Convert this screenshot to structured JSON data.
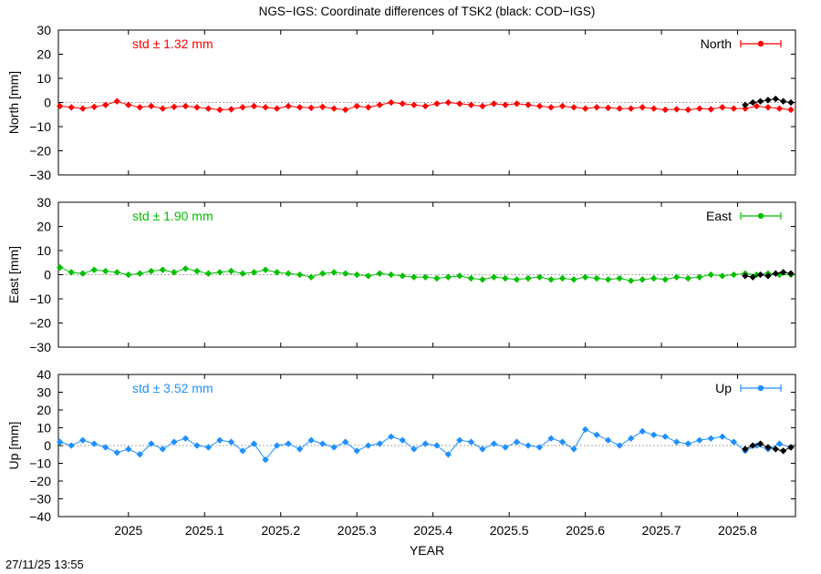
{
  "title": "NGS−IGS: Coordinate differences of TSK2 (black: COD−IGS)",
  "xlabel": "YEAR",
  "timestamp": "27/11/25 13:55",
  "colors": {
    "north": "#ff0000",
    "east": "#00c000",
    "up": "#1e90ff",
    "cod": "#000000",
    "zero": "#888888"
  },
  "chart_data": [
    {
      "type": "scatter",
      "panel": "north",
      "ylabel": "North [mm]",
      "legend": "North",
      "std_label": "std ± 1.32 mm",
      "xlim": [
        2024.908,
        2025.876
      ],
      "ylim": [
        -30,
        30
      ],
      "yticks": [
        "30",
        "20",
        "10",
        "0",
        "−10",
        "−20",
        "−30"
      ],
      "series": [
        {
          "x": [
            2024.91,
            2024.925,
            2024.94,
            2024.955,
            2024.97,
            2024.985,
            2025.0,
            2025.015,
            2025.03,
            2025.045,
            2025.06,
            2025.075,
            2025.09,
            2025.105,
            2025.12,
            2025.135,
            2025.15,
            2025.165,
            2025.18,
            2025.195,
            2025.21,
            2025.225,
            2025.24,
            2025.255,
            2025.27,
            2025.285,
            2025.3,
            2025.315,
            2025.33,
            2025.345,
            2025.36,
            2025.375,
            2025.39,
            2025.405,
            2025.42,
            2025.435,
            2025.45,
            2025.465,
            2025.48,
            2025.495,
            2025.51,
            2025.525,
            2025.54,
            2025.555,
            2025.57,
            2025.585,
            2025.6,
            2025.615,
            2025.63,
            2025.645,
            2025.66,
            2025.675,
            2025.69,
            2025.705,
            2025.72,
            2025.735,
            2025.75,
            2025.765,
            2025.78,
            2025.795,
            2025.81,
            2025.825,
            2025.84,
            2025.855,
            2025.87
          ],
          "y": [
            -1.5,
            -2,
            -2.5,
            -1.8,
            -1,
            0.5,
            -1,
            -2,
            -1.5,
            -2.5,
            -1.8,
            -1.5,
            -2,
            -2.5,
            -3,
            -2.8,
            -2,
            -1.5,
            -2,
            -2.5,
            -1.5,
            -2,
            -2.2,
            -1.8,
            -2.5,
            -3,
            -1.5,
            -2,
            -1,
            0,
            -0.5,
            -1,
            -1.5,
            -0.5,
            0,
            -0.5,
            -1,
            -1.5,
            -0.5,
            -1,
            -0.5,
            -1,
            -1.5,
            -2,
            -1.5,
            -2,
            -2.5,
            -2,
            -2.2,
            -2.5,
            -2.5,
            -2,
            -2.5,
            -3,
            -2.8,
            -3,
            -2.5,
            -2.8,
            -2,
            -2.5,
            -2.5,
            -1.5,
            -2,
            -2.5,
            -3
          ]
        },
        {
          "name": "COD",
          "x": [
            2025.81,
            2025.82,
            2025.83,
            2025.84,
            2025.85,
            2025.86,
            2025.87
          ],
          "y": [
            -1,
            0,
            0.5,
            1,
            1.5,
            0.5,
            0
          ]
        }
      ]
    },
    {
      "type": "scatter",
      "panel": "east",
      "ylabel": "East [mm]",
      "legend": "East",
      "std_label": "std ± 1.90 mm",
      "xlim": [
        2024.908,
        2025.876
      ],
      "ylim": [
        -30,
        30
      ],
      "yticks": [
        "30",
        "20",
        "10",
        "0",
        "−10",
        "−20",
        "−30"
      ],
      "series": [
        {
          "x": [
            2024.91,
            2024.925,
            2024.94,
            2024.955,
            2024.97,
            2024.985,
            2025.0,
            2025.015,
            2025.03,
            2025.045,
            2025.06,
            2025.075,
            2025.09,
            2025.105,
            2025.12,
            2025.135,
            2025.15,
            2025.165,
            2025.18,
            2025.195,
            2025.21,
            2025.225,
            2025.24,
            2025.255,
            2025.27,
            2025.285,
            2025.3,
            2025.315,
            2025.33,
            2025.345,
            2025.36,
            2025.375,
            2025.39,
            2025.405,
            2025.42,
            2025.435,
            2025.45,
            2025.465,
            2025.48,
            2025.495,
            2025.51,
            2025.525,
            2025.54,
            2025.555,
            2025.57,
            2025.585,
            2025.6,
            2025.615,
            2025.63,
            2025.645,
            2025.66,
            2025.675,
            2025.69,
            2025.705,
            2025.72,
            2025.735,
            2025.75,
            2025.765,
            2025.78,
            2025.795,
            2025.81,
            2025.825,
            2025.84,
            2025.855,
            2025.87
          ],
          "y": [
            3,
            1,
            0.5,
            2,
            1.5,
            1,
            0,
            0.5,
            1.5,
            2,
            1,
            2.5,
            1.5,
            0.5,
            1,
            1.5,
            0.5,
            1,
            2,
            1,
            0.5,
            0,
            -1,
            0.5,
            1,
            0.5,
            0,
            -0.5,
            0.5,
            0,
            -0.5,
            -1,
            -1,
            -1.5,
            -1,
            -0.5,
            -1.5,
            -2,
            -1,
            -1.5,
            -2,
            -1.5,
            -1,
            -2,
            -1.5,
            -2,
            -1,
            -1.5,
            -2,
            -1.5,
            -2.5,
            -2,
            -1.5,
            -2,
            -1,
            -1.5,
            -1,
            0,
            -0.5,
            0,
            0.5,
            0,
            0.5,
            0,
            0
          ]
        },
        {
          "name": "COD",
          "x": [
            2025.81,
            2025.82,
            2025.83,
            2025.84,
            2025.85,
            2025.86,
            2025.87
          ],
          "y": [
            -0.5,
            -1,
            0,
            -0.5,
            0.5,
            1,
            0.5
          ]
        }
      ]
    },
    {
      "type": "scatter",
      "panel": "up",
      "ylabel": "Up [mm]",
      "legend": "Up",
      "std_label": "std ± 3.52 mm",
      "xlim": [
        2024.908,
        2025.876
      ],
      "ylim": [
        -40,
        40
      ],
      "yticks": [
        "40",
        "30",
        "20",
        "10",
        "0",
        "−10",
        "−20",
        "−30",
        "−40"
      ],
      "xticks": [
        {
          "value": 2025.0,
          "label": "2025"
        },
        {
          "value": 2025.1,
          "label": "2025.1"
        },
        {
          "value": 2025.2,
          "label": "2025.2"
        },
        {
          "value": 2025.3,
          "label": "2025.3"
        },
        {
          "value": 2025.4,
          "label": "2025.4"
        },
        {
          "value": 2025.5,
          "label": "2025.5"
        },
        {
          "value": 2025.6,
          "label": "2025.6"
        },
        {
          "value": 2025.7,
          "label": "2025.7"
        },
        {
          "value": 2025.8,
          "label": "2025.8"
        }
      ],
      "series": [
        {
          "x": [
            2024.91,
            2024.925,
            2024.94,
            2024.955,
            2024.97,
            2024.985,
            2025.0,
            2025.015,
            2025.03,
            2025.045,
            2025.06,
            2025.075,
            2025.09,
            2025.105,
            2025.12,
            2025.135,
            2025.15,
            2025.165,
            2025.18,
            2025.195,
            2025.21,
            2025.225,
            2025.24,
            2025.255,
            2025.27,
            2025.285,
            2025.3,
            2025.315,
            2025.33,
            2025.345,
            2025.36,
            2025.375,
            2025.39,
            2025.405,
            2025.42,
            2025.435,
            2025.45,
            2025.465,
            2025.48,
            2025.495,
            2025.51,
            2025.525,
            2025.54,
            2025.555,
            2025.57,
            2025.585,
            2025.6,
            2025.615,
            2025.63,
            2025.645,
            2025.66,
            2025.675,
            2025.69,
            2025.705,
            2025.72,
            2025.735,
            2025.75,
            2025.765,
            2025.78,
            2025.795,
            2025.81,
            2025.825,
            2025.84,
            2025.855,
            2025.87
          ],
          "y": [
            2,
            0,
            3,
            1,
            -1,
            -4,
            -2,
            -5,
            1,
            -2,
            2,
            4,
            0,
            -1,
            3,
            2,
            -3,
            1,
            -8,
            0,
            1,
            -2,
            3,
            1,
            -1,
            2,
            -3,
            0,
            1,
            5,
            3,
            -2,
            1,
            0,
            -5,
            3,
            2,
            -2,
            1,
            -1,
            2,
            0,
            -1,
            4,
            2,
            -2,
            9,
            6,
            3,
            0,
            4,
            8,
            6,
            5,
            2,
            1,
            3,
            4,
            5,
            2,
            -3,
            0,
            -2,
            1,
            -1
          ]
        },
        {
          "name": "COD",
          "x": [
            2025.81,
            2025.82,
            2025.83,
            2025.84,
            2025.85,
            2025.86,
            2025.87
          ],
          "y": [
            -2,
            0,
            1,
            -1,
            -2,
            -3,
            -1
          ]
        }
      ]
    }
  ]
}
